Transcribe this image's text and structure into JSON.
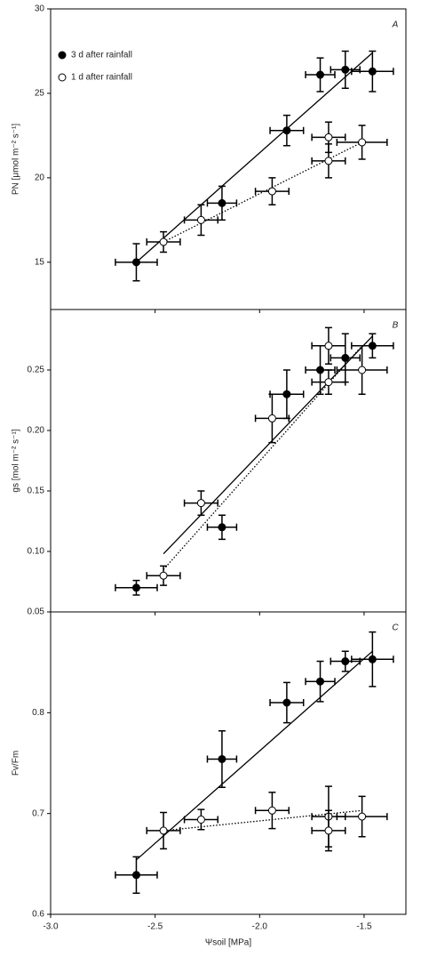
{
  "chart_data": [
    {
      "type": "scatter",
      "panel": "A",
      "ylabel": "PN [μmol m⁻² s⁻¹]",
      "xlim": [
        -3.0,
        -1.3
      ],
      "ylim": [
        12.2,
        30
      ],
      "yticks": [
        15,
        20,
        25,
        30
      ],
      "series": [
        {
          "name": "3 d after rainfall",
          "color": "#000000",
          "marker": "filled",
          "x": [
            -2.59,
            -2.18,
            -1.87,
            -1.71,
            -1.59,
            -1.46
          ],
          "values": [
            15.0,
            18.5,
            22.8,
            26.1,
            26.4,
            26.3
          ],
          "xerr": [
            0.1,
            0.07,
            0.08,
            0.07,
            0.07,
            0.1
          ],
          "yerr": [
            1.1,
            1.0,
            0.9,
            1.0,
            1.1,
            1.2
          ],
          "fit": {
            "x": [
              -2.59,
              -1.46
            ],
            "values": [
              15.0,
              27.4
            ],
            "line_style": "solid"
          }
        },
        {
          "name": "1 d after rainfall",
          "color": "#000000",
          "marker": "open",
          "x": [
            -2.46,
            -2.28,
            -1.94,
            -1.67,
            -1.67,
            -1.51
          ],
          "values": [
            16.2,
            17.5,
            19.2,
            21.0,
            22.4,
            22.1
          ],
          "xerr": [
            0.08,
            0.08,
            0.08,
            0.08,
            0.08,
            0.12
          ],
          "yerr": [
            0.6,
            0.9,
            0.8,
            1.0,
            0.9,
            1.0
          ],
          "fit": {
            "x": [
              -2.46,
              -1.51
            ],
            "values": [
              16.2,
              22.1
            ],
            "line_style": "dotted"
          }
        }
      ]
    },
    {
      "type": "scatter",
      "panel": "B",
      "ylabel": "gs [mol m⁻² s⁻¹]",
      "xlim": [
        -3.0,
        -1.3
      ],
      "ylim": [
        0.05,
        0.3
      ],
      "yticks": [
        0.05,
        {
          "value": 0.1,
          "label": "0.10"
        },
        0.15,
        {
          "value": 0.2,
          "label": "0.20"
        },
        0.25
      ],
      "series": [
        {
          "color": "#000000",
          "marker": "filled",
          "x": [
            -2.59,
            -2.18,
            -1.87,
            -1.71,
            -1.59,
            -1.46
          ],
          "values": [
            0.07,
            0.12,
            0.23,
            0.25,
            0.26,
            0.27
          ],
          "xerr": [
            0.1,
            0.07,
            0.08,
            0.07,
            0.07,
            0.1
          ],
          "yerr": [
            0.006,
            0.01,
            0.02,
            0.02,
            0.02,
            0.01
          ],
          "fit": {
            "x": [
              -2.46,
              -1.46
            ],
            "values": [
              0.098,
              0.278
            ],
            "line_style": "solid"
          }
        },
        {
          "color": "#000000",
          "marker": "open",
          "x": [
            -2.46,
            -2.28,
            -1.94,
            -1.67,
            -1.67,
            -1.51
          ],
          "values": [
            0.08,
            0.14,
            0.21,
            0.27,
            0.24,
            0.25
          ],
          "xerr": [
            0.08,
            0.08,
            0.08,
            0.08,
            0.08,
            0.12
          ],
          "yerr": [
            0.008,
            0.01,
            0.02,
            0.015,
            0.01,
            0.02
          ],
          "fit": {
            "x": [
              -2.46,
              -1.51
            ],
            "values": [
              0.085,
              0.27
            ],
            "line_style": "dotted"
          }
        }
      ]
    },
    {
      "type": "scatter",
      "panel": "C",
      "ylabel": "Fv/Fm",
      "xlabel": "Ψsoil [MPa]",
      "xlim": [
        -3.0,
        -1.3
      ],
      "ylim": [
        0.6,
        0.9
      ],
      "yticks": [
        0.6,
        0.7,
        0.8
      ],
      "xticks": [
        {
          "value": -3.0,
          "label": "-3.0"
        },
        -2.5,
        {
          "value": -2.0,
          "label": "-2.0"
        },
        -1.5
      ],
      "series": [
        {
          "color": "#000000",
          "marker": "filled",
          "x": [
            -2.59,
            -2.18,
            -1.87,
            -1.71,
            -1.59,
            -1.46
          ],
          "values": [
            0.639,
            0.754,
            0.81,
            0.831,
            0.851,
            0.853
          ],
          "xerr": [
            0.1,
            0.07,
            0.08,
            0.07,
            0.07,
            0.1
          ],
          "yerr": [
            0.018,
            0.028,
            0.02,
            0.02,
            0.01,
            0.027
          ],
          "fit": {
            "x": [
              -2.59,
              -1.46
            ],
            "values": [
              0.654,
              0.861
            ],
            "line_style": "solid"
          }
        },
        {
          "color": "#000000",
          "marker": "open",
          "x": [
            -2.46,
            -2.28,
            -1.94,
            -1.67,
            -1.67,
            -1.51
          ],
          "values": [
            0.683,
            0.694,
            0.703,
            0.697,
            0.683,
            0.697
          ],
          "xerr": [
            0.08,
            0.08,
            0.08,
            0.08,
            0.08,
            0.12
          ],
          "yerr": [
            0.018,
            0.01,
            0.018,
            0.03,
            0.02,
            0.02
          ],
          "fit": {
            "x": [
              -2.46,
              -1.51
            ],
            "values": [
              0.683,
              0.703
            ],
            "line_style": "dotted"
          }
        }
      ]
    }
  ]
}
